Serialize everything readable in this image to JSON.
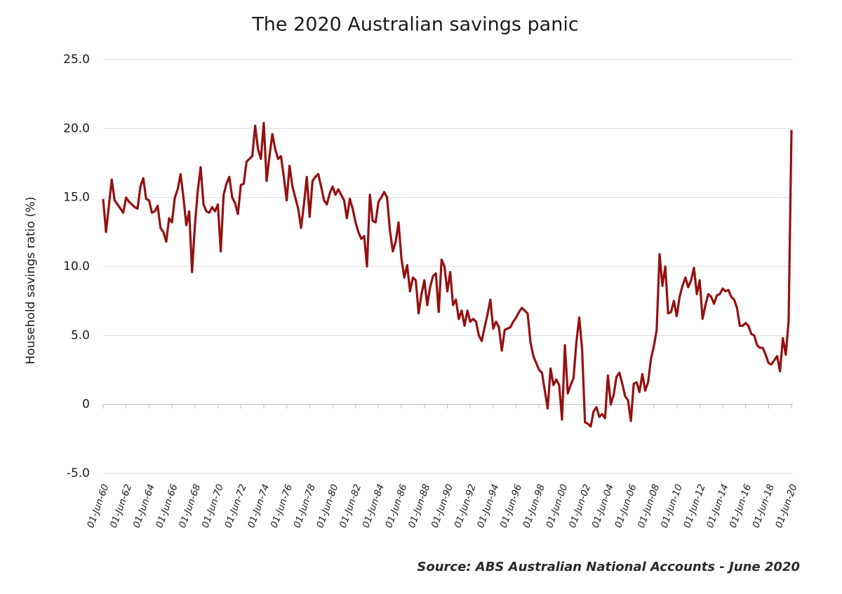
{
  "chart_data": {
    "type": "line",
    "title": "The 2020 Australian savings panic",
    "y_label": "Household  savings ratio (%)",
    "source": "Source: ABS Australian National Accounts - June 2020",
    "categories": [
      "01-Jun-60",
      null,
      null,
      null,
      null,
      null,
      null,
      null,
      "01-Jun-62",
      null,
      null,
      null,
      null,
      null,
      null,
      null,
      "01-Jun-64",
      null,
      null,
      null,
      null,
      null,
      null,
      null,
      "01-Jun-66",
      null,
      null,
      null,
      null,
      null,
      null,
      null,
      "01-Jun-68",
      null,
      null,
      null,
      null,
      null,
      null,
      null,
      "01-Jun-70",
      null,
      null,
      null,
      null,
      null,
      null,
      null,
      "01-Jun-72",
      null,
      null,
      null,
      null,
      null,
      null,
      null,
      "01-Jun-74",
      null,
      null,
      null,
      null,
      null,
      null,
      null,
      "01-Jun-76",
      null,
      null,
      null,
      null,
      null,
      null,
      null,
      "01-Jun-78",
      null,
      null,
      null,
      null,
      null,
      null,
      null,
      "01-Jun-80",
      null,
      null,
      null,
      null,
      null,
      null,
      null,
      "01-Jun-82",
      null,
      null,
      null,
      null,
      null,
      null,
      null,
      "01-Jun-84",
      null,
      null,
      null,
      null,
      null,
      null,
      null,
      "01-Jun-86",
      null,
      null,
      null,
      null,
      null,
      null,
      null,
      "01-Jun-88",
      null,
      null,
      null,
      null,
      null,
      null,
      null,
      "01-Jun-90",
      null,
      null,
      null,
      null,
      null,
      null,
      null,
      "01-Jun-92",
      null,
      null,
      null,
      null,
      null,
      null,
      null,
      "01-Jun-94",
      null,
      null,
      null,
      null,
      null,
      null,
      null,
      "01-Jun-96",
      null,
      null,
      null,
      null,
      null,
      null,
      null,
      "01-Jun-98",
      null,
      null,
      null,
      null,
      null,
      null,
      null,
      "01-Jun-00",
      null,
      null,
      null,
      null,
      null,
      null,
      null,
      "01-Jun-02",
      null,
      null,
      null,
      null,
      null,
      null,
      null,
      "01-Jun-04",
      null,
      null,
      null,
      null,
      null,
      null,
      null,
      "01-Jun-06",
      null,
      null,
      null,
      null,
      null,
      null,
      null,
      "01-Jun-08",
      null,
      null,
      null,
      null,
      null,
      null,
      null,
      "01-Jun-10",
      null,
      null,
      null,
      null,
      null,
      null,
      null,
      "01-Jun-12",
      null,
      null,
      null,
      null,
      null,
      null,
      null,
      "01-Jun-14",
      null,
      null,
      null,
      null,
      null,
      null,
      null,
      "01-Jun-16",
      null,
      null,
      null,
      null,
      null,
      null,
      null,
      "01-Jun-18",
      null,
      null,
      null,
      null,
      null,
      null,
      null,
      "01-Jun-20"
    ],
    "values": [
      14.9,
      12.5,
      14.4,
      16.3,
      14.8,
      14.5,
      14.2,
      13.9,
      15.0,
      14.7,
      14.5,
      14.3,
      14.2,
      15.8,
      16.4,
      14.9,
      14.8,
      13.9,
      14.0,
      14.4,
      12.8,
      12.5,
      11.8,
      13.5,
      13.2,
      15.0,
      15.6,
      16.7,
      15.0,
      13.0,
      14.0,
      9.6,
      13.0,
      15.5,
      17.2,
      14.5,
      14.0,
      13.9,
      14.3,
      14.0,
      14.5,
      11.1,
      15.2,
      16.0,
      16.5,
      15.0,
      14.6,
      13.8,
      15.9,
      16.0,
      17.6,
      17.8,
      18.0,
      20.2,
      18.5,
      17.8,
      20.4,
      16.2,
      18.0,
      19.6,
      18.5,
      17.8,
      18.0,
      16.5,
      14.8,
      17.3,
      15.8,
      15.0,
      14.2,
      12.8,
      14.5,
      16.5,
      13.6,
      16.2,
      16.5,
      16.7,
      15.8,
      14.8,
      14.5,
      15.3,
      15.8,
      15.2,
      15.6,
      15.2,
      14.8,
      13.5,
      14.9,
      14.2,
      13.2,
      12.5,
      12.0,
      12.2,
      10.0,
      15.2,
      13.3,
      13.2,
      14.7,
      15.0,
      15.4,
      15.0,
      12.6,
      11.1,
      11.8,
      13.2,
      10.6,
      9.2,
      10.1,
      8.2,
      9.2,
      9.0,
      6.6,
      8.0,
      9.0,
      7.2,
      8.5,
      9.3,
      9.5,
      6.7,
      10.5,
      10.0,
      8.2,
      9.6,
      7.2,
      7.6,
      6.2,
      6.8,
      5.7,
      6.8,
      6.0,
      6.2,
      6.0,
      5.0,
      4.6,
      5.6,
      6.5,
      7.6,
      5.5,
      6.0,
      5.6,
      3.9,
      5.4,
      5.5,
      5.6,
      6.0,
      6.3,
      6.7,
      7.0,
      6.8,
      6.6,
      4.5,
      3.5,
      3.0,
      2.5,
      2.3,
      1.0,
      -0.3,
      2.6,
      1.4,
      1.8,
      1.4,
      -1.1,
      4.3,
      0.8,
      1.4,
      1.9,
      4.5,
      6.3,
      4.0,
      -1.3,
      -1.4,
      -1.6,
      -0.5,
      -0.2,
      -0.9,
      -0.7,
      -1.0,
      2.1,
      0.0,
      0.7,
      2.0,
      2.3,
      1.5,
      0.6,
      0.3,
      -1.2,
      1.5,
      1.6,
      0.9,
      2.2,
      1.0,
      1.6,
      3.3,
      4.2,
      5.4,
      10.9,
      8.6,
      10.0,
      6.6,
      6.7,
      7.5,
      6.4,
      7.8,
      8.6,
      9.2,
      8.5,
      9.0,
      9.9,
      8.0,
      9.0,
      6.2,
      7.2,
      8.0,
      7.8,
      7.3,
      7.9,
      8.0,
      8.4,
      8.2,
      8.3,
      7.8,
      7.6,
      7.0,
      5.7,
      5.7,
      5.9,
      5.7,
      5.1,
      5.0,
      4.3,
      4.1,
      4.1,
      3.6,
      3.0,
      2.9,
      3.2,
      3.5,
      2.4,
      4.8,
      3.6,
      6.0,
      19.9
    ],
    "color": "#951010",
    "ylim": [
      -5,
      25
    ],
    "yticks": [
      {
        "value": 25,
        "label": "25.0"
      },
      {
        "value": 20,
        "label": "20.0"
      },
      {
        "value": 15,
        "label": "15.0"
      },
      {
        "value": 10,
        "label": "10.0"
      },
      {
        "value": 5,
        "label": "5.0"
      },
      0,
      {
        "value": -5,
        "label": "-5.0"
      }
    ],
    "grid": true
  }
}
